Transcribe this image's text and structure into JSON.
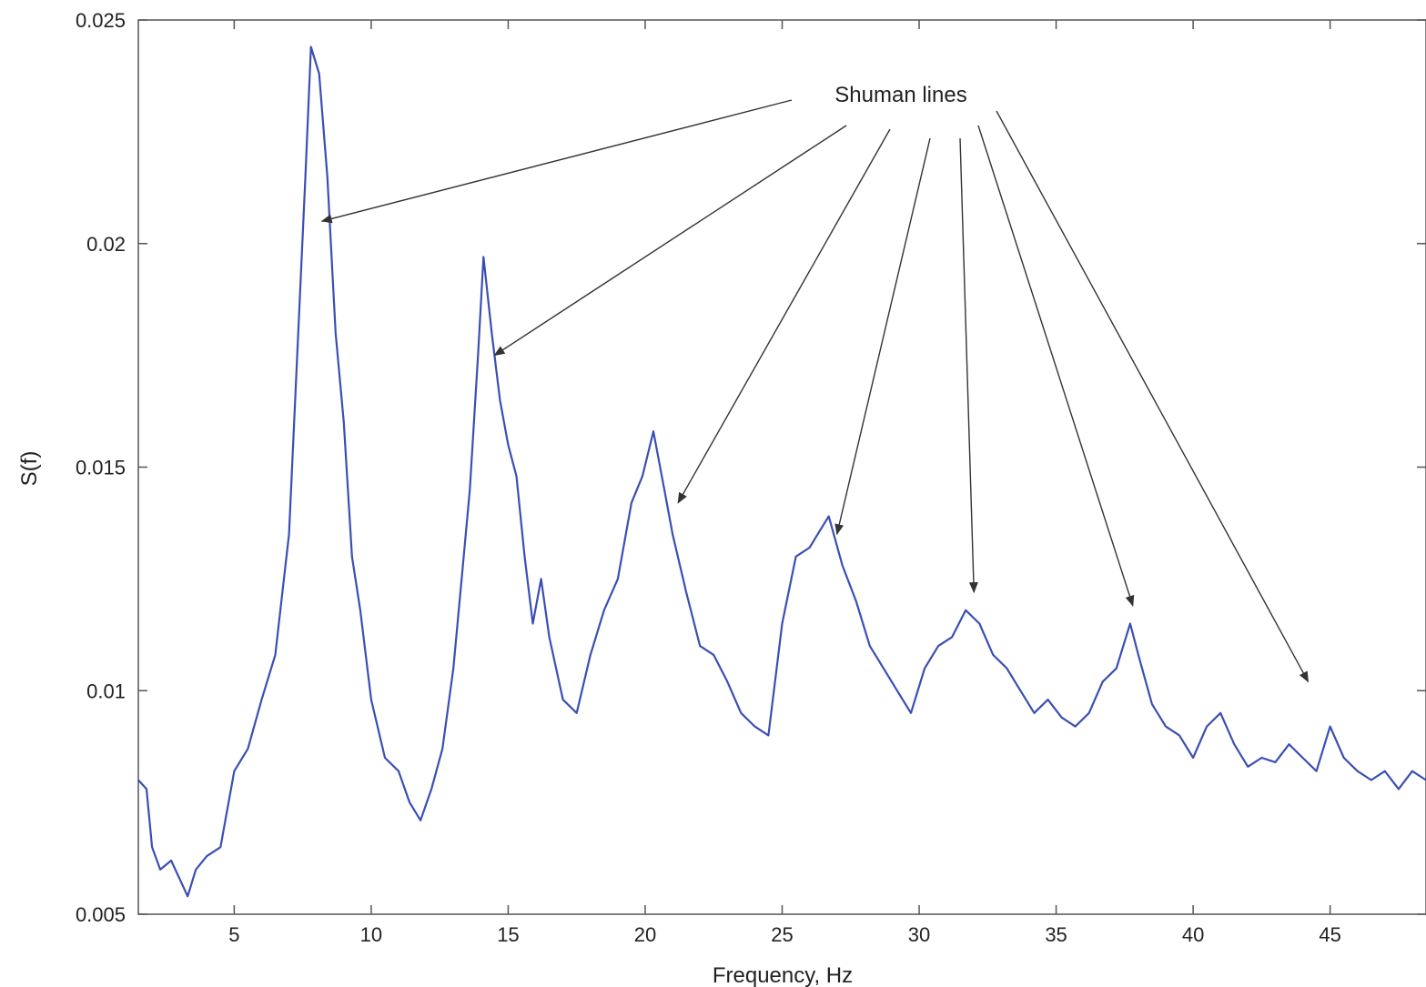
{
  "chart_data": {
    "type": "line",
    "xlabel": "Frequency, Hz",
    "ylabel": "S(f)",
    "xlim": [
      1.5,
      48.5
    ],
    "ylim": [
      0.005,
      0.025
    ],
    "xticks": [
      5,
      10,
      15,
      20,
      25,
      30,
      35,
      40,
      45
    ],
    "xtick_labels": [
      "5",
      "10",
      "15",
      "20",
      "25",
      "30",
      "35",
      "40",
      "45"
    ],
    "yticks": [
      0.005,
      0.01,
      0.015,
      0.02,
      0.025
    ],
    "ytick_labels": [
      "0.005",
      "0.01",
      "0.015",
      "0.02",
      "0.025"
    ],
    "grid": false,
    "series": [
      {
        "color": "#3a4fb4",
        "x": [
          1.5,
          1.8,
          2.0,
          2.3,
          2.7,
          3.0,
          3.3,
          3.6,
          4.0,
          4.5,
          5.0,
          5.5,
          6.0,
          6.5,
          7.0,
          7.3,
          7.6,
          7.8,
          8.1,
          8.4,
          8.7,
          9.0,
          9.3,
          9.6,
          10.0,
          10.5,
          11.0,
          11.4,
          11.8,
          12.2,
          12.6,
          13.0,
          13.3,
          13.6,
          13.9,
          14.1,
          14.4,
          14.7,
          15.0,
          15.3,
          15.6,
          15.9,
          16.2,
          16.5,
          17.0,
          17.5,
          18.0,
          18.5,
          19.0,
          19.5,
          19.9,
          20.3,
          20.7,
          21.0,
          21.5,
          22.0,
          22.5,
          23.0,
          23.5,
          24.0,
          24.5,
          25.0,
          25.5,
          26.0,
          26.3,
          26.7,
          27.2,
          27.7,
          28.2,
          28.7,
          29.2,
          29.7,
          30.2,
          30.7,
          31.2,
          31.7,
          32.2,
          32.7,
          33.2,
          33.7,
          34.2,
          34.7,
          35.2,
          35.7,
          36.2,
          36.7,
          37.2,
          37.7,
          38.0,
          38.5,
          39.0,
          39.5,
          40.0,
          40.5,
          41.0,
          41.5,
          42.0,
          42.5,
          43.0,
          43.5,
          44.0,
          44.5,
          45.0,
          45.5,
          46.0,
          46.5,
          47.0,
          47.5,
          48.0,
          48.5
        ],
        "y": [
          0.008,
          0.0078,
          0.0065,
          0.006,
          0.0062,
          0.0058,
          0.0054,
          0.006,
          0.0063,
          0.0065,
          0.0082,
          0.0087,
          0.0098,
          0.0108,
          0.0135,
          0.0175,
          0.0215,
          0.0244,
          0.0238,
          0.0215,
          0.018,
          0.016,
          0.013,
          0.0118,
          0.0098,
          0.0085,
          0.0082,
          0.0075,
          0.0071,
          0.0078,
          0.0087,
          0.0105,
          0.0125,
          0.0145,
          0.0175,
          0.0197,
          0.018,
          0.0165,
          0.0155,
          0.0148,
          0.013,
          0.0115,
          0.0125,
          0.0112,
          0.0098,
          0.0095,
          0.0108,
          0.0118,
          0.0125,
          0.0142,
          0.0148,
          0.0158,
          0.0145,
          0.0135,
          0.0122,
          0.011,
          0.0108,
          0.0102,
          0.0095,
          0.0092,
          0.009,
          0.0115,
          0.013,
          0.0132,
          0.0135,
          0.0139,
          0.0128,
          0.012,
          0.011,
          0.0105,
          0.01,
          0.0095,
          0.0105,
          0.011,
          0.0112,
          0.0118,
          0.0115,
          0.0108,
          0.0105,
          0.01,
          0.0095,
          0.0098,
          0.0094,
          0.0092,
          0.0095,
          0.0102,
          0.0105,
          0.0115,
          0.0108,
          0.0097,
          0.0092,
          0.009,
          0.0085,
          0.0092,
          0.0095,
          0.0088,
          0.0083,
          0.0085,
          0.0084,
          0.0088,
          0.0085,
          0.0082,
          0.0092,
          0.0085,
          0.0082,
          0.008,
          0.0082,
          0.0078,
          0.0082,
          0.008
        ]
      }
    ],
    "annotation": {
      "text": "Shuman lines",
      "arrow_targets": [
        {
          "x": 8.2,
          "y": 0.0205
        },
        {
          "x": 14.5,
          "y": 0.0175
        },
        {
          "x": 21.2,
          "y": 0.0142
        },
        {
          "x": 27.0,
          "y": 0.0135
        },
        {
          "x": 32.0,
          "y": 0.0122
        },
        {
          "x": 37.8,
          "y": 0.0119
        },
        {
          "x": 44.2,
          "y": 0.0102
        }
      ]
    }
  }
}
